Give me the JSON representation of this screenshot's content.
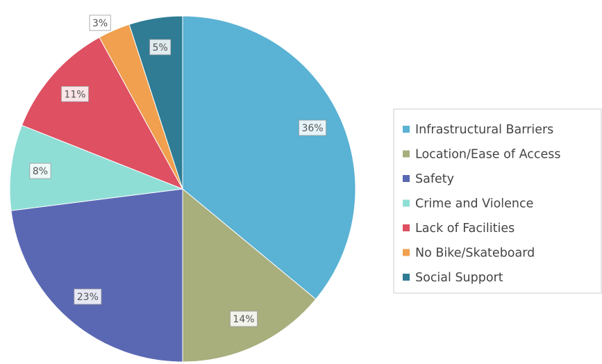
{
  "chart_data": {
    "type": "pie",
    "categories": [
      "Infrastructural Barriers",
      "Location/Ease of Access",
      "Safety",
      "Crime and Violence",
      "Lack of Facilities",
      "No Bike/Skateboard",
      "Social Support"
    ],
    "values": [
      36,
      14,
      23,
      8,
      11,
      3,
      5
    ],
    "value_labels": [
      "36%",
      "14%",
      "23%",
      "8%",
      "11%",
      "3%",
      "5%"
    ],
    "colors": [
      "#5ab2d4",
      "#a8ae7c",
      "#5a68b4",
      "#8fded6",
      "#de5062",
      "#f0a04e",
      "#2f7c94"
    ],
    "legend": "right"
  }
}
